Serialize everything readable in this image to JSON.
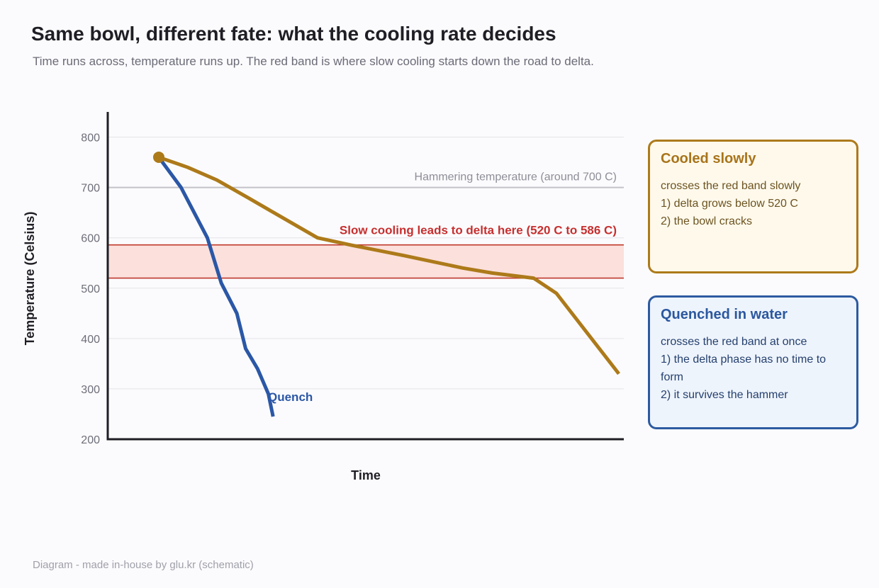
{
  "header": {
    "title": "Same bowl, different fate: what the cooling rate decides",
    "subtitle": "Time runs across, temperature runs up. The red band is where slow cooling starts down the road to delta."
  },
  "footer": {
    "text": "Diagram - made in-house by glu.kr (schematic)"
  },
  "callouts": {
    "slow": {
      "title": "Cooled slowly",
      "lines": [
        "crosses the red band slowly",
        "1) delta grows below 520 C",
        "2) the bowl cracks"
      ]
    },
    "quench": {
      "title": "Quenched in water",
      "lines": [
        "crosses the red band at once",
        "1) the delta phase has no time to form",
        "2) it survives the hammer"
      ]
    }
  },
  "colors": {
    "slow": "#ad7a1a",
    "quench": "#2b57a6",
    "band_fill": "#fbe0dc",
    "band_line": "#c0392b",
    "band_label": "#c62f2f",
    "reference": "#c2c2c8",
    "grid": "#e4e4ea",
    "axis": "#1e1e24",
    "tick": "#6e6e7a"
  },
  "chart_data": {
    "type": "line",
    "xlabel": "Time",
    "ylabel": "Temperature (Celsius)",
    "ylim": [
      200,
      850
    ],
    "xlim": [
      0,
      100
    ],
    "yticks": [
      "200",
      "300",
      "400",
      "500",
      "600",
      "700",
      "800"
    ],
    "grid": true,
    "band": {
      "min": 520,
      "max": 586,
      "label": "Slow cooling leads to delta here (520 C to 586 C)"
    },
    "reference_line": {
      "value": 700,
      "label": "Hammering temperature (around 700 C)"
    },
    "series": [
      {
        "name": "Quench",
        "x": [
          10,
          14.3,
          19.4,
          22.1,
          25.1,
          26.8,
          29.1,
          31.2,
          32.1
        ],
        "y": [
          760,
          700,
          600,
          510,
          450,
          380,
          340,
          290,
          245
        ]
      },
      {
        "x": [
          10,
          15.6,
          21.2,
          27.2,
          33.1,
          40.7,
          47.5,
          57.3,
          68.8,
          74.5,
          82.5,
          86.9,
          99.0
        ],
        "y": [
          760,
          740,
          715,
          680,
          645,
          600,
          585,
          565,
          540,
          530,
          520,
          490,
          330
        ]
      }
    ],
    "start_point": {
      "x": 10,
      "y": 760
    }
  }
}
